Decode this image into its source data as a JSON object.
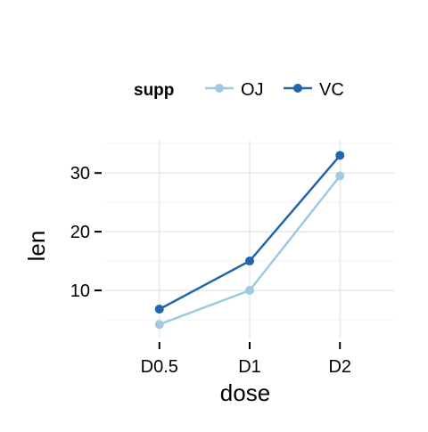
{
  "chart_data": {
    "type": "line",
    "categories": [
      "D0.5",
      "D1",
      "D2"
    ],
    "series": [
      {
        "name": "OJ",
        "values": [
          4.2,
          10.0,
          29.5
        ],
        "color": "#9ecae1"
      },
      {
        "name": "VC",
        "values": [
          6.8,
          15.0,
          33.0
        ],
        "color": "#2166ac"
      }
    ],
    "title": "",
    "xlabel": "dose",
    "ylabel": "len",
    "ylim": [
      1.8,
      35.5
    ],
    "yticks": [
      10,
      20,
      30
    ],
    "legend": {
      "title": "supp",
      "placement": "top"
    },
    "grid": true
  }
}
